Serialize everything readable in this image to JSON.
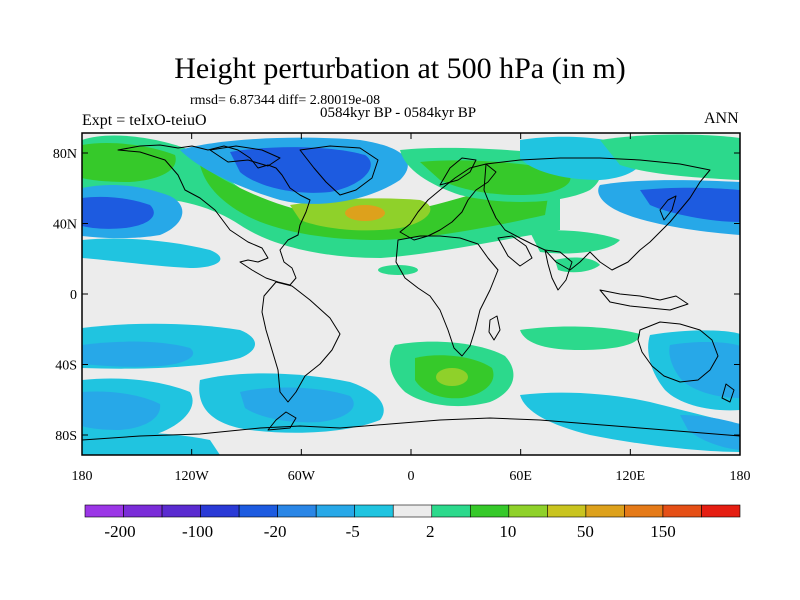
{
  "title": "Height perturbation at 500 hPa (in m)",
  "stats": "rmsd= 6.87344 diff= 2.80019e-08",
  "period": "0584kyr BP - 0584kyr BP",
  "experiment": "Expt = teIxO-teiuO",
  "season": "ANN",
  "axes": {
    "lat_ticks": [
      "80N",
      "40N",
      "0",
      "40S",
      "80S"
    ],
    "lon_ticks": [
      "180",
      "120W",
      "60W",
      "0",
      "60E",
      "120E",
      "180"
    ]
  },
  "colorbar": {
    "labels": [
      "-200",
      "-100",
      "-20",
      "-5",
      "2",
      "10",
      "50",
      "150"
    ],
    "colors": [
      "#9b36e6",
      "#7a2cd8",
      "#5a2bd0",
      "#2a3ad6",
      "#1d5be0",
      "#2a86e6",
      "#27a8e8",
      "#20c4e0",
      "#ececec",
      "#2cd98c",
      "#36c92a",
      "#8fd12a",
      "#c9c41f",
      "#dda11c",
      "#e57a18",
      "#e54f16",
      "#e51e12"
    ]
  },
  "palette": {
    "background": "#ececec",
    "neg_light": "#20c4e0",
    "neg_mid": "#27a8e8",
    "neg_strong": "#1d5be0",
    "pos_light": "#2cd98c",
    "pos_mid": "#36c92a",
    "pos_strong": "#8fd12a",
    "pos_peak": "#dda11c"
  }
}
